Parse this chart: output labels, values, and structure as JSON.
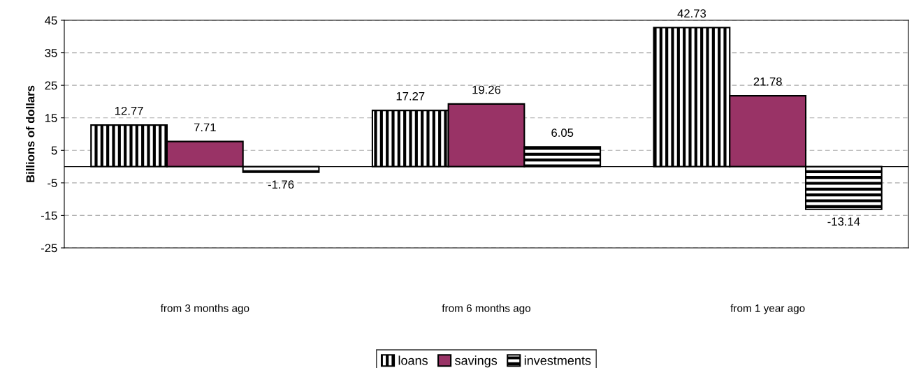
{
  "chart_data": {
    "type": "bar",
    "ylabel": "Billions of dollars",
    "categories": [
      "from 3 months ago",
      "from 6 months ago",
      "from 1 year ago"
    ],
    "series": [
      {
        "name": "loans",
        "color": "#000000",
        "values": [
          12.77,
          17.27,
          42.73
        ]
      },
      {
        "name": "savings",
        "color": "#993366",
        "values": [
          7.71,
          19.26,
          21.78
        ]
      },
      {
        "name": "investments",
        "color": "#000000",
        "values": [
          -1.76,
          6.05,
          -13.14
        ]
      }
    ],
    "ylim": [
      -25,
      45
    ],
    "yticks": [
      -25,
      -15,
      -5,
      5,
      15,
      25,
      35,
      45
    ],
    "grid": "y",
    "legend": "bottom",
    "data_labels": true
  }
}
